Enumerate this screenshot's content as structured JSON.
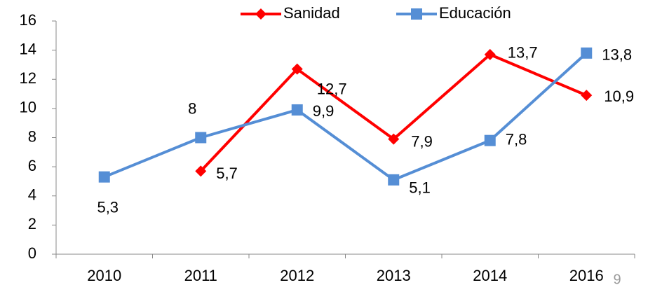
{
  "chart_data": {
    "type": "line",
    "categories": [
      "2010",
      "2011",
      "2012",
      "2013",
      "2014",
      "2016"
    ],
    "series": [
      {
        "name": "Sanidad",
        "color": "#ff0000",
        "marker": "diamond",
        "values": [
          null,
          5.7,
          12.7,
          7.9,
          13.7,
          10.9
        ],
        "value_labels": [
          null,
          "5,7",
          "12,7",
          "7,9",
          "13,7",
          "10,9"
        ]
      },
      {
        "name": "Educación",
        "color": "#558ed5",
        "marker": "square",
        "values": [
          5.3,
          8,
          9.9,
          5.1,
          7.8,
          13.8
        ],
        "value_labels": [
          "5,3",
          "8",
          "9,9",
          "5,1",
          "7,8",
          "13,8"
        ]
      }
    ],
    "ylim": [
      0,
      16
    ],
    "yticks": [
      0,
      2,
      4,
      6,
      8,
      10,
      12,
      14,
      16
    ],
    "grid": false,
    "legend": "top"
  },
  "page_number": "9"
}
